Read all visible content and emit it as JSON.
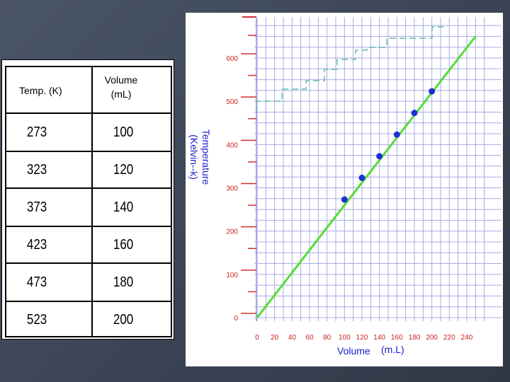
{
  "table": {
    "headers": [
      "Temp. (K)",
      "Volume (mL)"
    ],
    "header_volume_lines": [
      "Volume",
      "(mL)"
    ],
    "rows": [
      [
        "273",
        "100"
      ],
      [
        "323",
        "120"
      ],
      [
        "373",
        "140"
      ],
      [
        "423",
        "160"
      ],
      [
        "473",
        "180"
      ],
      [
        "523",
        "200"
      ]
    ]
  },
  "chart_data": {
    "type": "scatter",
    "xlabel": "Volume",
    "xlabel_unit": "(m.L)",
    "ylabel_lines": [
      "Temperature",
      "(Kelvin--k)"
    ],
    "x_ticks": [
      0,
      20,
      40,
      60,
      80,
      100,
      120,
      140,
      160,
      180,
      200,
      220,
      240
    ],
    "y_ticks": [
      0,
      100,
      200,
      300,
      400,
      500,
      600
    ],
    "xlim": [
      0,
      240
    ],
    "ylim": [
      0,
      600
    ],
    "points": [
      {
        "x": 100,
        "y": 273
      },
      {
        "x": 120,
        "y": 323
      },
      {
        "x": 140,
        "y": 373
      },
      {
        "x": 160,
        "y": 423
      },
      {
        "x": 180,
        "y": 473
      },
      {
        "x": 200,
        "y": 523
      }
    ],
    "fit_line": {
      "x": [
        0,
        250
      ],
      "y": [
        0,
        650
      ]
    },
    "grid": true,
    "colors": {
      "points": "#1f2fd6",
      "line": "#55dd33",
      "grid": "#a8a8e8",
      "tick_labels": "#cc2222",
      "axis_labels": "#1a1acc",
      "tick_marks": "#cc3333",
      "step": "#66bbaa"
    }
  }
}
